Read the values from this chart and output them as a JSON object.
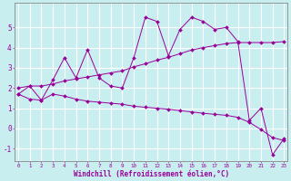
{
  "xlabel": "Windchill (Refroidissement éolien,°C)",
  "background_color": "#c8eef0",
  "grid_color": "#ffffff",
  "line_color": "#990099",
  "x_ticks": [
    0,
    1,
    2,
    3,
    4,
    5,
    6,
    7,
    8,
    9,
    10,
    11,
    12,
    13,
    14,
    15,
    16,
    17,
    18,
    19,
    20,
    21,
    22,
    23
  ],
  "y_ticks": [
    -1,
    0,
    1,
    2,
    3,
    4,
    5
  ],
  "ylim": [
    -1.6,
    6.2
  ],
  "xlim": [
    -0.3,
    23.3
  ],
  "series1_x": [
    0,
    1,
    2,
    3,
    4,
    5,
    6,
    7,
    8,
    9,
    10,
    11,
    12,
    13,
    14,
    15,
    16,
    17,
    18,
    19,
    20,
    21,
    22,
    23
  ],
  "series1_y": [
    1.7,
    2.1,
    1.4,
    2.4,
    3.5,
    2.5,
    3.9,
    2.5,
    2.1,
    2.0,
    3.5,
    5.5,
    5.3,
    3.6,
    4.9,
    5.5,
    5.3,
    4.9,
    5.0,
    4.3,
    0.4,
    1.0,
    -1.3,
    -0.5
  ],
  "series2_x": [
    0,
    1,
    2,
    3,
    4,
    5,
    6,
    7,
    8,
    9,
    10,
    11,
    12,
    13,
    14,
    15,
    16,
    17,
    18,
    19,
    20,
    21,
    22,
    23
  ],
  "series2_y": [
    1.7,
    1.45,
    1.4,
    1.7,
    1.6,
    1.45,
    1.35,
    1.3,
    1.25,
    1.2,
    1.1,
    1.05,
    1.0,
    0.95,
    0.88,
    0.82,
    0.75,
    0.7,
    0.65,
    0.55,
    0.3,
    -0.05,
    -0.45,
    -0.6
  ],
  "series3_x": [
    0,
    1,
    2,
    3,
    4,
    5,
    6,
    7,
    8,
    9,
    10,
    11,
    12,
    13,
    14,
    15,
    16,
    17,
    18,
    19,
    20,
    21,
    22,
    23
  ],
  "series3_y": [
    2.0,
    2.1,
    2.1,
    2.2,
    2.35,
    2.45,
    2.55,
    2.65,
    2.75,
    2.85,
    3.05,
    3.2,
    3.38,
    3.52,
    3.7,
    3.88,
    4.0,
    4.1,
    4.2,
    4.25,
    4.25,
    4.25,
    4.25,
    4.3
  ]
}
